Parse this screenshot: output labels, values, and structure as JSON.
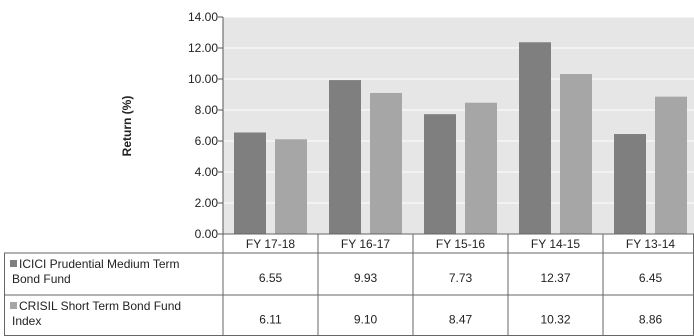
{
  "chart_data": {
    "type": "bar",
    "categories": [
      "FY 17-18",
      "FY 16-17",
      "FY 15-16",
      "FY 14-15",
      "FY 13-14"
    ],
    "series": [
      {
        "name": "ICICI Prudential Medium Term Bond Fund",
        "values": [
          6.55,
          9.93,
          7.73,
          12.37,
          6.45
        ],
        "labels": [
          "6.55",
          "9.93",
          "7.73",
          "12.37",
          "6.45"
        ],
        "color": "#7f7f7f"
      },
      {
        "name": "CRISIL Short Term Bond Fund Index",
        "values": [
          6.11,
          9.1,
          8.47,
          10.32,
          8.86
        ],
        "labels": [
          "6.11",
          "9.10",
          "8.47",
          "10.32",
          "8.86"
        ],
        "color": "#a6a6a6"
      }
    ],
    "ylabel": "Return (%)",
    "xlabel": "",
    "ylim": [
      0,
      14
    ],
    "yticks": [
      "0.00",
      "2.00",
      "4.00",
      "6.00",
      "8.00",
      "10.00",
      "12.00",
      "14.00"
    ],
    "grid": true,
    "legend": "data table below chart",
    "plot_background": "#e6e6e6",
    "gridline_color": "#ffffff"
  }
}
